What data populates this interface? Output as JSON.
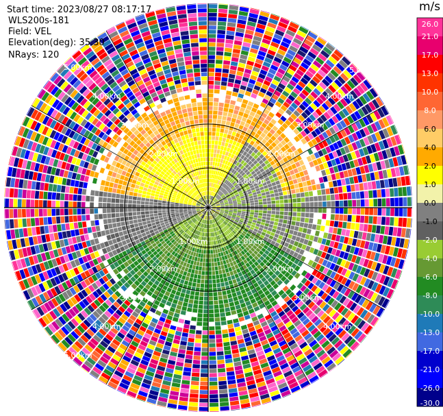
{
  "header": {
    "start_time": "Start time: 2023/08/27 08:17:17",
    "instrument": "WLS200s-181",
    "field": "Field: VEL",
    "elevation": "Elevation(deg): 35.30",
    "nrays": "NRays: 120"
  },
  "colorbar": {
    "unit": "m/s",
    "ticks": [
      "26.0",
      "21.0",
      "17.0",
      "13.0",
      "10.0",
      "8.0",
      "6.0",
      "4.0",
      "2.0",
      "1.0",
      "0.0",
      "-1.0",
      "-2.0",
      "-4.0",
      "-6.0",
      "-8.0",
      "-10.0",
      "-13.0",
      "-17.0",
      "-21.0",
      "-26.0",
      "-30.0"
    ],
    "colors": [
      "#ff3399",
      "#e8006e",
      "#ff0000",
      "#ff3300",
      "#ff6633",
      "#ff9966",
      "#ffcc66",
      "#ffaa00",
      "#ffff00",
      "#f2f2aa",
      "#808080",
      "#606060",
      "#99cc33",
      "#669933",
      "#228b22",
      "#2e8b57",
      "#1f7ab8",
      "#4169e1",
      "#0000cd",
      "#0000ff",
      "#00008b",
      "#191970"
    ]
  },
  "chart_data": {
    "type": "heatmap",
    "subtype": "ppi-polar",
    "rays": 120,
    "grid": true,
    "range_rings_km": [
      1.0,
      2.0
    ],
    "range_ring_labels": [
      "1.00km",
      "1.00km",
      "1.00km",
      "1.00km",
      "2.00km",
      "2.00km",
      "2.00km",
      "2.00km",
      "3.00km",
      "3.00km",
      "3.00km",
      "3.00km",
      "4.00km",
      "4.00km",
      "4.00km",
      "4.00km",
      "5.00km",
      "5.00km",
      "5.00km"
    ],
    "spokes_deg": [
      0,
      30,
      60,
      90,
      120,
      150
    ],
    "field_pattern": [
      {
        "sector": "north",
        "value_range": [
          2,
          10
        ],
        "colors": "yellow to orange"
      },
      {
        "sector": "center-east",
        "value_range": [
          -2,
          1
        ],
        "colors": "gray to light green"
      },
      {
        "sector": "south",
        "value_range": [
          -8,
          -2
        ],
        "colors": "green"
      },
      {
        "sector": "outer ring",
        "value_range": [
          -30,
          26
        ],
        "colors": "noise / random"
      }
    ]
  }
}
